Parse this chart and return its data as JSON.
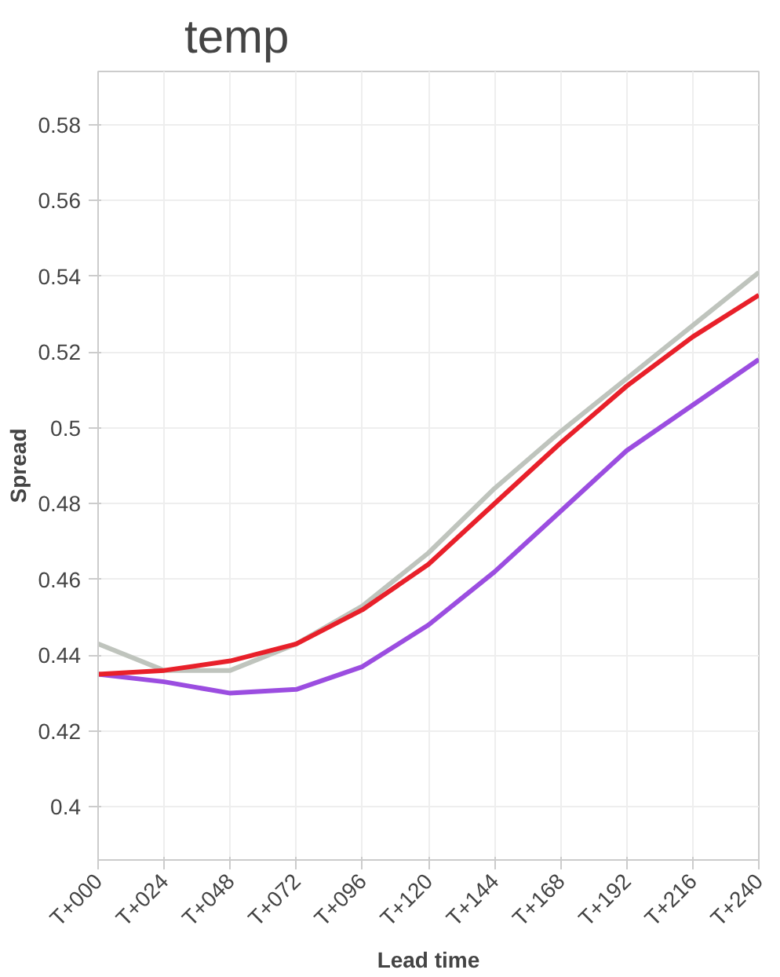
{
  "chart_data": {
    "type": "line",
    "title": "temp",
    "xlabel": "Lead time",
    "ylabel": "Spread",
    "categories": [
      "T+000",
      "T+024",
      "T+048",
      "T+072",
      "T+096",
      "T+120",
      "T+144",
      "T+168",
      "T+192",
      "T+216",
      "T+240"
    ],
    "series": [
      {
        "color": "#bfc4bd",
        "values": [
          0.443,
          0.436,
          0.436,
          0.443,
          0.453,
          0.467,
          0.484,
          0.499,
          0.513,
          0.527,
          0.541
        ]
      },
      {
        "color": "#9b4de0",
        "values": [
          0.435,
          0.433,
          0.43,
          0.431,
          0.437,
          0.448,
          0.462,
          0.478,
          0.494,
          0.506,
          0.518
        ]
      },
      {
        "color": "#e8202a",
        "values": [
          0.435,
          0.436,
          0.4385,
          0.443,
          0.452,
          0.464,
          0.48,
          0.496,
          0.511,
          0.524,
          0.535
        ]
      }
    ],
    "ylim": [
      0.386,
      0.594
    ],
    "yticks": [
      0.4,
      0.42,
      0.44,
      0.46,
      0.48,
      0.5,
      0.52,
      0.54,
      0.56,
      0.58
    ],
    "grid": true,
    "marker": "none",
    "line_style": "solid"
  }
}
